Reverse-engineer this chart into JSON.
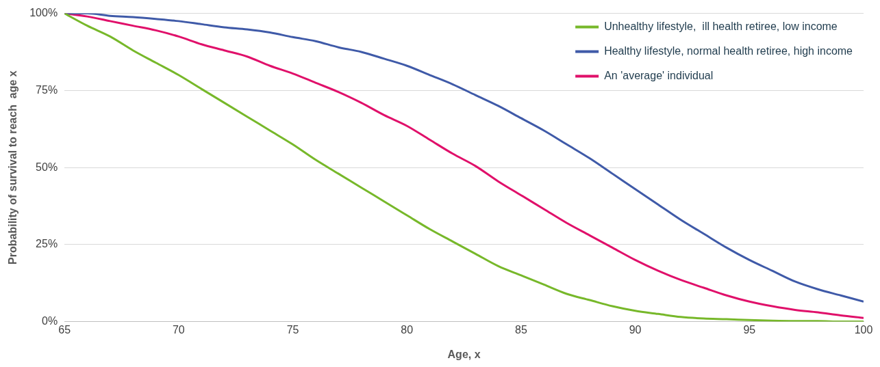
{
  "chart_data": {
    "type": "line",
    "xlabel": "Age, x",
    "ylabel": "Probability of survival to reach  age x",
    "x": [
      65,
      66,
      67,
      68,
      69,
      70,
      71,
      72,
      73,
      74,
      75,
      76,
      77,
      78,
      79,
      80,
      81,
      82,
      83,
      84,
      85,
      86,
      87,
      88,
      89,
      90,
      91,
      92,
      93,
      94,
      95,
      96,
      97,
      98,
      99,
      100
    ],
    "series": [
      {
        "name": "Unhealthy lifestyle,  ill health retiree, low income",
        "color": "#77b82a",
        "values": [
          100,
          96,
          92.5,
          88,
          84,
          80,
          75.5,
          71,
          66.5,
          62,
          57.5,
          52.5,
          48,
          43.5,
          39,
          34.5,
          30,
          26,
          22,
          18,
          15,
          12,
          9,
          7,
          5,
          3.5,
          2.5,
          1.5,
          1,
          0.8,
          0.5,
          0.3,
          0.2,
          0.2,
          0,
          0
        ]
      },
      {
        "name": "Healthy lifestyle, normal health retiree, high income",
        "color": "#3f5aa8",
        "values": [
          100,
          100,
          99.2,
          98.8,
          98.2,
          97.5,
          96.5,
          95.5,
          94.8,
          93.8,
          92.3,
          91,
          89,
          87.5,
          85.3,
          83,
          80,
          77,
          73.5,
          70,
          66,
          62,
          57.5,
          53,
          48,
          43,
          38,
          33,
          28.5,
          24,
          20,
          16.5,
          13,
          10.5,
          8.5,
          6.5
        ]
      },
      {
        "name": "An 'average' individual",
        "color": "#e0106a",
        "values": [
          100,
          99,
          97.5,
          96,
          94.5,
          92.5,
          90,
          88,
          86,
          83,
          80.5,
          77.5,
          74.5,
          71,
          67,
          63.5,
          59,
          54.5,
          50.5,
          45.5,
          41,
          36.5,
          32,
          28,
          24,
          20,
          16.5,
          13.5,
          11,
          8.5,
          6.5,
          5,
          3.8,
          3,
          2,
          1.2
        ]
      }
    ],
    "xlim": [
      65,
      100
    ],
    "xticks": [
      65,
      70,
      75,
      80,
      85,
      90,
      95,
      100
    ],
    "ylim": [
      0,
      100
    ],
    "yticks": [
      {
        "value": 0,
        "label": "0%"
      },
      {
        "value": 25,
        "label": "25%"
      },
      {
        "value": 50,
        "label": "50%"
      },
      {
        "value": 75,
        "label": "75%"
      },
      {
        "value": 100,
        "label": "100%"
      }
    ],
    "grid": "y",
    "legend": "top right",
    "marker": "none",
    "line_style": "solid"
  }
}
